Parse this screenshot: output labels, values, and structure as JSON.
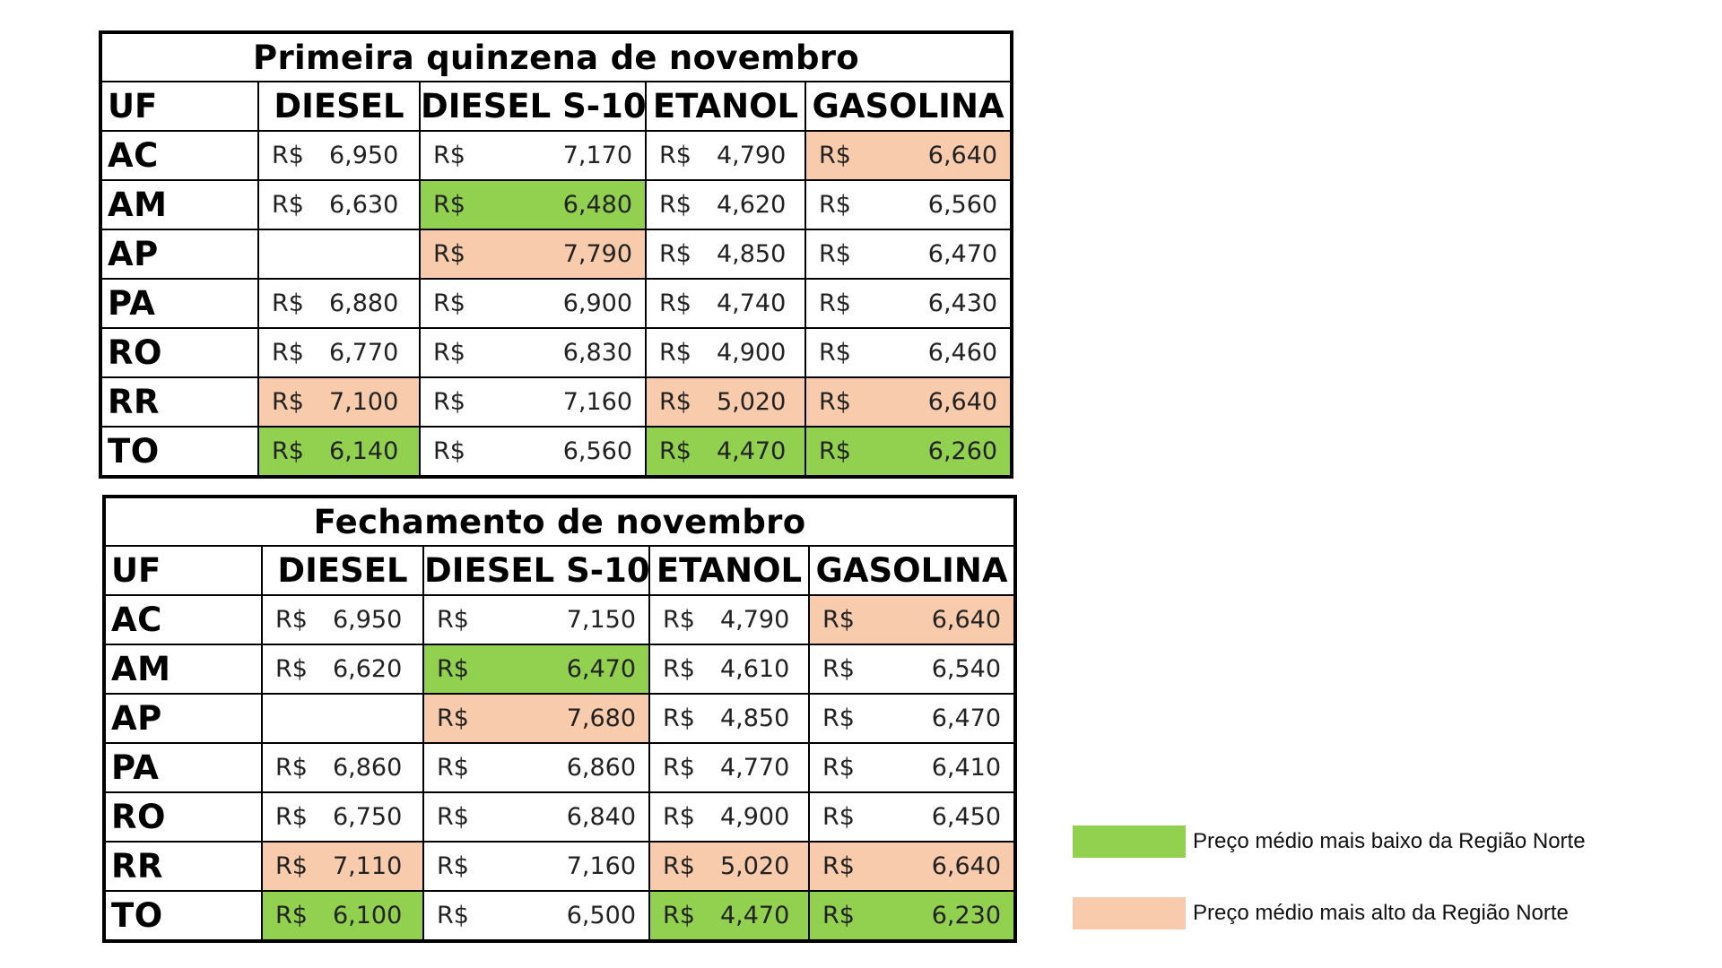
{
  "currency": "R$",
  "columns": [
    "UF",
    "DIESEL",
    "DIESEL S-10",
    "ETANOL",
    "GASOLINA"
  ],
  "colors": {
    "lowest": "#92d050",
    "highest": "#f8cbad"
  },
  "tables": [
    {
      "title": "Primeira quinzena de novembro",
      "rows": [
        {
          "uf": "AC",
          "diesel": "6,950",
          "s10": "7,170",
          "etanol": "4,790",
          "gasolina": "6,640",
          "hl": [
            "",
            "",
            "",
            "high"
          ]
        },
        {
          "uf": "AM",
          "diesel": "6,630",
          "s10": "6,480",
          "etanol": "4,620",
          "gasolina": "6,560",
          "hl": [
            "",
            "low",
            "",
            ""
          ]
        },
        {
          "uf": "AP",
          "diesel": "",
          "s10": "7,790",
          "etanol": "4,850",
          "gasolina": "6,470",
          "hl": [
            "",
            "high",
            "",
            ""
          ]
        },
        {
          "uf": "PA",
          "diesel": "6,880",
          "s10": "6,900",
          "etanol": "4,740",
          "gasolina": "6,430",
          "hl": [
            "",
            "",
            "",
            ""
          ]
        },
        {
          "uf": "RO",
          "diesel": "6,770",
          "s10": "6,830",
          "etanol": "4,900",
          "gasolina": "6,460",
          "hl": [
            "",
            "",
            "",
            ""
          ]
        },
        {
          "uf": "RR",
          "diesel": "7,100",
          "s10": "7,160",
          "etanol": "5,020",
          "gasolina": "6,640",
          "hl": [
            "high",
            "",
            "high",
            "high"
          ]
        },
        {
          "uf": "TO",
          "diesel": "6,140",
          "s10": "6,560",
          "etanol": "4,470",
          "gasolina": "6,260",
          "hl": [
            "low",
            "",
            "low",
            "low"
          ]
        }
      ]
    },
    {
      "title": "Fechamento de novembro",
      "rows": [
        {
          "uf": "AC",
          "diesel": "6,950",
          "s10": "7,150",
          "etanol": "4,790",
          "gasolina": "6,640",
          "hl": [
            "",
            "",
            "",
            "high"
          ]
        },
        {
          "uf": "AM",
          "diesel": "6,620",
          "s10": "6,470",
          "etanol": "4,610",
          "gasolina": "6,540",
          "hl": [
            "",
            "low",
            "",
            ""
          ]
        },
        {
          "uf": "AP",
          "diesel": "",
          "s10": "7,680",
          "etanol": "4,850",
          "gasolina": "6,470",
          "hl": [
            "",
            "high",
            "",
            ""
          ]
        },
        {
          "uf": "PA",
          "diesel": "6,860",
          "s10": "6,860",
          "etanol": "4,770",
          "gasolina": "6,410",
          "hl": [
            "",
            "",
            "",
            ""
          ]
        },
        {
          "uf": "RO",
          "diesel": "6,750",
          "s10": "6,840",
          "etanol": "4,900",
          "gasolina": "6,450",
          "hl": [
            "",
            "",
            "",
            ""
          ]
        },
        {
          "uf": "RR",
          "diesel": "7,110",
          "s10": "7,160",
          "etanol": "5,020",
          "gasolina": "6,640",
          "hl": [
            "high",
            "",
            "high",
            "high"
          ]
        },
        {
          "uf": "TO",
          "diesel": "6,100",
          "s10": "6,500",
          "etanol": "4,470",
          "gasolina": "6,230",
          "hl": [
            "low",
            "",
            "low",
            "low"
          ]
        }
      ]
    }
  ],
  "legend": {
    "low_label": "Preço médio mais baixo da Região Norte",
    "high_label": "Preço médio mais alto da Região Norte"
  }
}
